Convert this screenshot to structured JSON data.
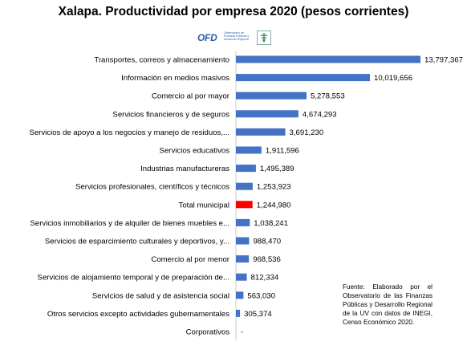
{
  "page": {
    "title": "Xalapa.  Productividad  por empresa 2020 (pesos corrientes)",
    "logo": {
      "mark": "OFD",
      "text": "Observatorio de Finanzas Públicas y Desarrollo Regional",
      "icon": "ofd-emblem-icon"
    },
    "source_note": "Fuente: Elaborado por el Observatorio de las Finanzas Públicas y Desarrollo Regional de la UV con datos de INEGI, Censo Económico 2020."
  },
  "colors": {
    "bar": "#4472C4",
    "highlight": "#FF0000"
  },
  "chart_data": {
    "type": "bar",
    "orientation": "horizontal",
    "title": "Xalapa.  Productividad  por empresa 2020 (pesos corrientes)",
    "categories": [
      "Transportes, correos y almacenamiento",
      "Información en medios masivos",
      "Comercio al por mayor",
      "Servicios financieros y de seguros",
      "Servicios de apoyo a los negocios y manejo de residuos,...",
      "Servicios educativos",
      "Industrias manufactureras",
      "Servicios profesionales, científicos y técnicos",
      "Total municipal",
      "Servicios inmobiliarios y de alquiler de bienes muebles e...",
      "Servicios de esparcimiento culturales y deportivos, y...",
      "Comercio al por menor",
      "Servicios de alojamiento temporal y de preparación de...",
      "Servicios de salud y de asistencia social",
      "Otros servicios excepto actividades gubernamentales",
      "Corporativos"
    ],
    "values": [
      13797367,
      10019656,
      5278553,
      4674293,
      3691230,
      1911596,
      1495389,
      1253923,
      1244980,
      1038241,
      988470,
      968536,
      812334,
      563030,
      305374,
      null
    ],
    "data_labels": [
      "13,797,367",
      "10,019,656",
      "5,278,553",
      "4,674,293",
      "3,691,230",
      "1,911,596",
      "1,495,389",
      "1,253,923",
      "1,244,980",
      "1,038,241",
      "988,470",
      "968,536",
      "812,334",
      "563,030",
      "305,374",
      "-"
    ],
    "highlight_category": "Total municipal",
    "xlim": [
      0,
      13797367
    ],
    "grid": false,
    "legend": "none"
  }
}
